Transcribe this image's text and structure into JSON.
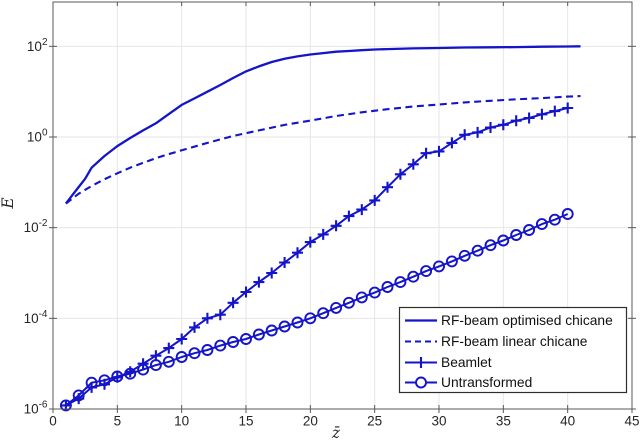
{
  "figure": {
    "background": "#ffffff"
  },
  "chart_data": {
    "type": "line",
    "title": "",
    "xlabel": "z̄",
    "ylabel": "E",
    "x_axis": {
      "min": 0,
      "max": 45,
      "scale": "linear"
    },
    "y_axis": {
      "min": 1e-06,
      "max": 950,
      "scale": "log"
    },
    "x_ticks": [
      0,
      5,
      10,
      15,
      20,
      25,
      30,
      35,
      40,
      45
    ],
    "y_tick_exponents": [
      2,
      0,
      -2,
      -4,
      -6
    ],
    "grid": true,
    "legend_position": "south-east",
    "line_color": "#1414c8",
    "series": [
      {
        "name": "RF-beam optimised chicane",
        "style": "solid",
        "x": [
          1,
          1.5,
          2,
          2.5,
          3,
          4,
          5,
          6,
          7,
          8,
          9,
          10,
          11,
          12,
          13,
          14,
          15,
          16,
          17,
          18,
          19,
          20,
          21,
          22,
          23,
          24,
          25,
          26,
          28,
          30,
          32,
          34,
          36,
          38,
          40,
          41
        ],
        "y": [
          0.034,
          0.052,
          0.079,
          0.12,
          0.21,
          0.38,
          0.63,
          0.95,
          1.4,
          2.0,
          3.2,
          5.1,
          7.1,
          10,
          14,
          20,
          28,
          36,
          45,
          53,
          60,
          66,
          71,
          76,
          79,
          82,
          85,
          87,
          90,
          92,
          94,
          95,
          96,
          98,
          99,
          100
        ]
      },
      {
        "name": "RF-beam linear chicane",
        "style": "dashed",
        "x": [
          1,
          2,
          3,
          4,
          5,
          6,
          7,
          8,
          9,
          10,
          12,
          14,
          16,
          18,
          20,
          22,
          24,
          26,
          28,
          30,
          32,
          34,
          36,
          38,
          40,
          41
        ],
        "y": [
          0.034,
          0.056,
          0.083,
          0.117,
          0.158,
          0.21,
          0.27,
          0.34,
          0.42,
          0.51,
          0.74,
          1.05,
          1.4,
          1.85,
          2.3,
          2.9,
          3.5,
          4.1,
          4.7,
          5.2,
          5.8,
          6.3,
          6.8,
          7.2,
          7.8,
          8.0
        ]
      },
      {
        "name": "Beamlet",
        "style": "line-plus",
        "x": [
          1,
          2,
          3,
          4,
          5,
          6,
          7,
          8,
          9,
          10,
          11,
          12,
          13,
          14,
          15,
          16,
          17,
          18,
          19,
          20,
          21,
          22,
          23,
          24,
          25,
          26,
          27,
          28,
          29,
          30,
          31,
          32,
          33,
          34,
          35,
          36,
          37,
          38,
          39,
          40
        ],
        "y": [
          1.2e-06,
          1.7e-06,
          3e-06,
          3.5e-06,
          5e-06,
          6.6e-06,
          1e-05,
          1.5e-05,
          2.2e-05,
          3.5e-05,
          6.3e-05,
          0.0001,
          0.00012,
          0.00022,
          0.00038,
          0.00063,
          0.001,
          0.0017,
          0.0028,
          0.0048,
          0.0071,
          0.011,
          0.018,
          0.025,
          0.04,
          0.078,
          0.15,
          0.25,
          0.44,
          0.48,
          0.74,
          1.12,
          1.26,
          1.62,
          1.86,
          2.29,
          2.63,
          3.16,
          3.72,
          4.37
        ]
      },
      {
        "name": "Untransformed",
        "style": "line-circle",
        "x": [
          1,
          2,
          3,
          4,
          5,
          6,
          7,
          8,
          9,
          10,
          11,
          12,
          13,
          14,
          15,
          16,
          17,
          18,
          19,
          20,
          21,
          22,
          23,
          24,
          25,
          26,
          27,
          28,
          29,
          30,
          31,
          32,
          33,
          34,
          35,
          36,
          37,
          38,
          39,
          40
        ],
        "y": [
          1.2e-06,
          2e-06,
          3.8e-06,
          4.3e-06,
          5.2e-06,
          6e-06,
          7.4e-06,
          9.3e-06,
          1.1e-05,
          1.4e-05,
          1.7e-05,
          2e-05,
          2.5e-05,
          3e-05,
          3.5e-05,
          4.4e-05,
          5.4e-05,
          6.6e-05,
          8.1e-05,
          0.0001,
          0.00013,
          0.00017,
          0.00022,
          0.00029,
          0.00037,
          0.00049,
          0.00063,
          0.00083,
          0.0011,
          0.0014,
          0.0018,
          0.0024,
          0.0031,
          0.0041,
          0.0052,
          0.0069,
          0.0089,
          0.012,
          0.015,
          0.02
        ]
      }
    ]
  }
}
